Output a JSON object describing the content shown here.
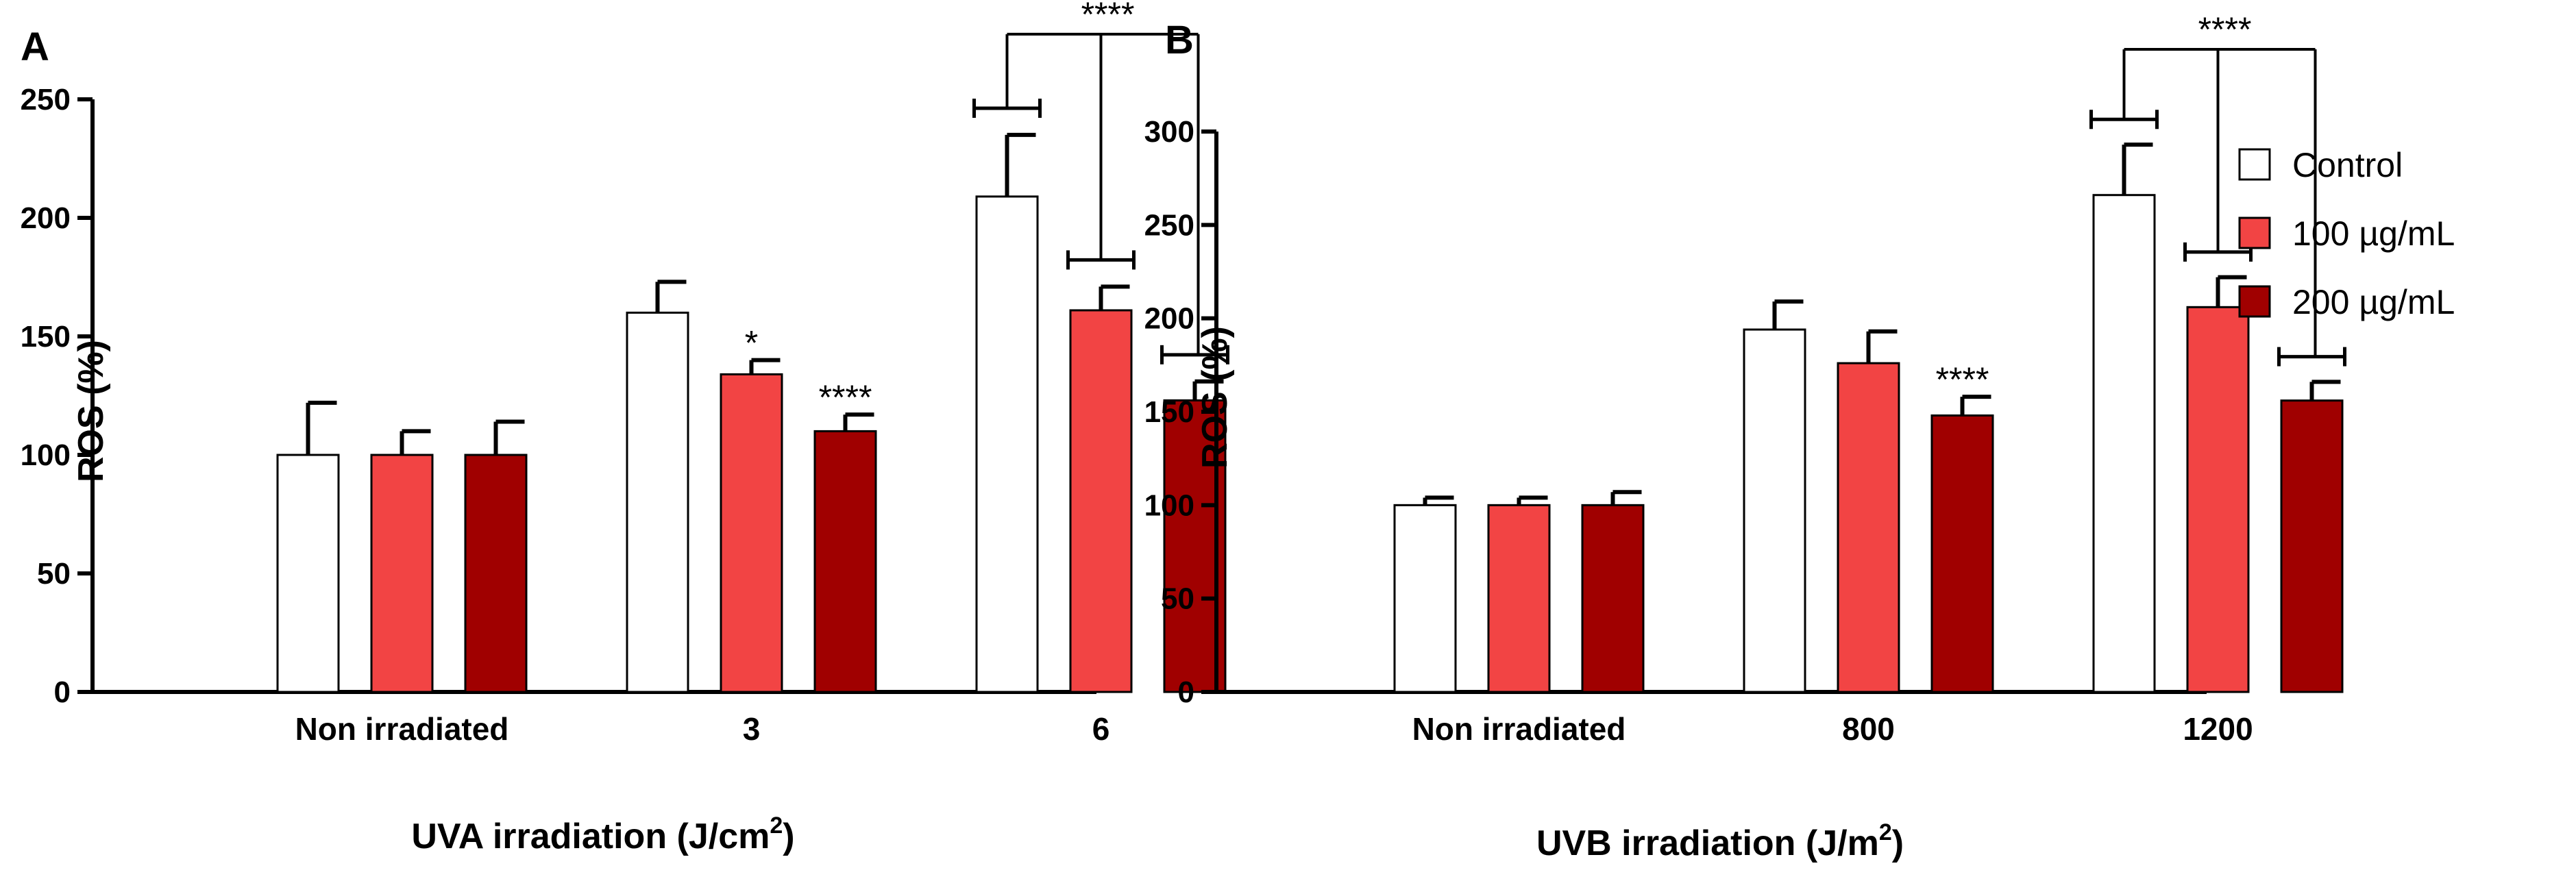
{
  "colors": {
    "control": "#ffffff",
    "c100": "#f24444",
    "c200": "#a00000",
    "stroke": "#000000"
  },
  "legend": {
    "items": [
      {
        "label": "Control",
        "color": "#ffffff"
      },
      {
        "label": "100 µg/mL",
        "color": "#f24444"
      },
      {
        "label": "200 µg/mL",
        "color": "#a00000"
      }
    ]
  },
  "chart_data": [
    {
      "type": "bar",
      "panel": "A",
      "ylabel": "ROS (%)",
      "xlabel_main": "UVA irradiation (J/cm",
      "xlabel_sup": "2",
      "xlabel_close": ")",
      "ylim": [
        0,
        250
      ],
      "yticks": [
        0,
        50,
        100,
        150,
        200,
        250
      ],
      "categories": [
        "Non irradiated",
        "3",
        "6"
      ],
      "series": [
        {
          "name": "Control",
          "values": [
            100,
            160,
            209
          ],
          "errors": [
            22,
            13,
            26
          ],
          "stars": [
            "",
            "",
            ""
          ]
        },
        {
          "name": "100 µg/mL",
          "values": [
            100,
            134,
            161
          ],
          "errors": [
            10,
            6,
            10
          ],
          "stars": [
            "",
            "*",
            ""
          ]
        },
        {
          "name": "200 µg/mL",
          "values": [
            100,
            110,
            123
          ],
          "errors": [
            14,
            7,
            8
          ],
          "stars": [
            "",
            "****",
            ""
          ]
        }
      ],
      "brackets": [
        {
          "category": 2,
          "label": "****",
          "from": "Control",
          "to": [
            "100 µg/mL",
            "200 µg/mL"
          ]
        }
      ]
    },
    {
      "type": "bar",
      "panel": "B",
      "ylabel": "ROS (%)",
      "xlabel_main": "UVB irradiation (J/m",
      "xlabel_sup": "2",
      "xlabel_close": ")",
      "ylim": [
        0,
        300
      ],
      "yticks": [
        0,
        50,
        100,
        150,
        200,
        250,
        300
      ],
      "categories": [
        "Non irradiated",
        "800",
        "1200"
      ],
      "series": [
        {
          "name": "Control",
          "values": [
            100,
            194,
            266
          ],
          "errors": [
            4,
            15,
            27
          ],
          "stars": [
            "",
            "",
            ""
          ]
        },
        {
          "name": "100 µg/mL",
          "values": [
            100,
            176,
            206
          ],
          "errors": [
            4,
            17,
            16
          ],
          "stars": [
            "",
            "",
            ""
          ]
        },
        {
          "name": "200 µg/mL",
          "values": [
            100,
            148,
            156
          ],
          "errors": [
            7,
            10,
            10
          ],
          "stars": [
            "",
            "****",
            ""
          ]
        }
      ],
      "brackets": [
        {
          "category": 2,
          "label": "****",
          "from": "Control",
          "to": [
            "100 µg/mL",
            "200 µg/mL"
          ]
        }
      ]
    }
  ]
}
